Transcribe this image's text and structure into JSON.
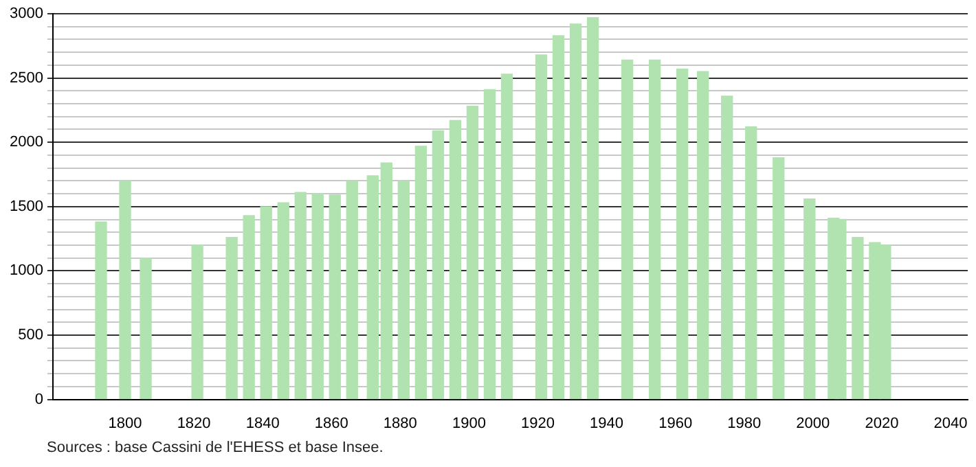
{
  "chart_data": {
    "type": "bar",
    "color": "#b0e3b0",
    "x": [
      1793,
      1800,
      1806,
      1821,
      1831,
      1836,
      1841,
      1846,
      1851,
      1856,
      1861,
      1866,
      1872,
      1876,
      1881,
      1886,
      1891,
      1896,
      1901,
      1906,
      1911,
      1921,
      1926,
      1931,
      1936,
      1946,
      1954,
      1962,
      1968,
      1975,
      1982,
      1990,
      1999,
      2006,
      2008,
      2013,
      2018,
      2021
    ],
    "values": [
      1380,
      1700,
      1100,
      1200,
      1260,
      1430,
      1500,
      1530,
      1610,
      1600,
      1590,
      1700,
      1740,
      1840,
      1700,
      1970,
      2090,
      2170,
      2280,
      2410,
      2530,
      2680,
      2830,
      2920,
      2970,
      2640,
      2640,
      2570,
      2550,
      2360,
      2120,
      1880,
      1560,
      1410,
      1400,
      1260,
      1220,
      1200
    ],
    "xlim": [
      1779,
      2045
    ],
    "xticks": [
      1800,
      1820,
      1840,
      1860,
      1880,
      1900,
      1920,
      1940,
      1960,
      1980,
      2000,
      2020,
      2040
    ],
    "ylim": [
      0,
      3000
    ],
    "yticks": [
      0,
      {
        "value": 100,
        "label": null
      },
      {
        "value": 200,
        "label": null
      },
      {
        "value": 300,
        "label": null
      },
      {
        "value": 400,
        "label": null
      },
      500,
      {
        "value": 600,
        "label": null
      },
      {
        "value": 700,
        "label": null
      },
      {
        "value": 800,
        "label": null
      },
      {
        "value": 900,
        "label": null
      },
      1000,
      {
        "value": 1100,
        "label": null
      },
      {
        "value": 1200,
        "label": null
      },
      {
        "value": 1300,
        "label": null
      },
      {
        "value": 1400,
        "label": null
      },
      1500,
      {
        "value": 1600,
        "label": null
      },
      {
        "value": 1700,
        "label": null
      },
      {
        "value": 1800,
        "label": null
      },
      {
        "value": 1900,
        "label": null
      },
      2000,
      {
        "value": 2100,
        "label": null
      },
      {
        "value": 2200,
        "label": null
      },
      {
        "value": 2300,
        "label": null
      },
      {
        "value": 2400,
        "label": null
      },
      2500,
      {
        "value": 2600,
        "label": null
      },
      {
        "value": 2700,
        "label": null
      },
      {
        "value": 2800,
        "label": null
      },
      {
        "value": 2900,
        "label": null
      },
      3000
    ],
    "grid": "y",
    "annotations": [
      "Sources : base Cassini de l'EHESS et base Insee."
    ]
  }
}
